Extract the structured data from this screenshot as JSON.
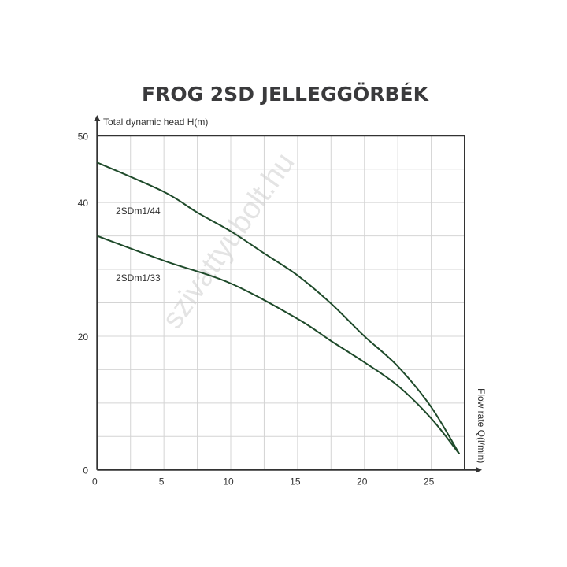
{
  "chart_data": {
    "type": "line",
    "title": "FROG 2SD JELLEGGÖRBÉK",
    "xlabel": "Flow rate Q(l/min)",
    "ylabel": "Total dynamic head H(m)",
    "xlim": [
      0,
      27.5
    ],
    "ylim": [
      0,
      50
    ],
    "xticks": [
      0,
      5,
      10,
      15,
      20,
      25
    ],
    "yticks": [
      0,
      20,
      40,
      50
    ],
    "grid": true,
    "x_grid_step": 2.5,
    "y_grid_step": 5,
    "line_color": "#1e4a2a",
    "series": [
      {
        "name": "2SDm1/44",
        "x": [
          0,
          5,
          7.5,
          10,
          12.5,
          15,
          17.5,
          20,
          22.5,
          25,
          27.1
        ],
        "y": [
          46,
          41.6,
          38.5,
          35.7,
          32.4,
          29.1,
          24.9,
          20.0,
          15.5,
          9.4,
          2.4
        ]
      },
      {
        "name": "2SDm1/33",
        "x": [
          0,
          5,
          10,
          15,
          17.5,
          20,
          22.5,
          25,
          27.1
        ],
        "y": [
          35,
          31.3,
          27.9,
          22.6,
          19.3,
          16.1,
          12.6,
          7.7,
          2.4
        ]
      }
    ],
    "watermark": "szivattyubolt.hu"
  }
}
